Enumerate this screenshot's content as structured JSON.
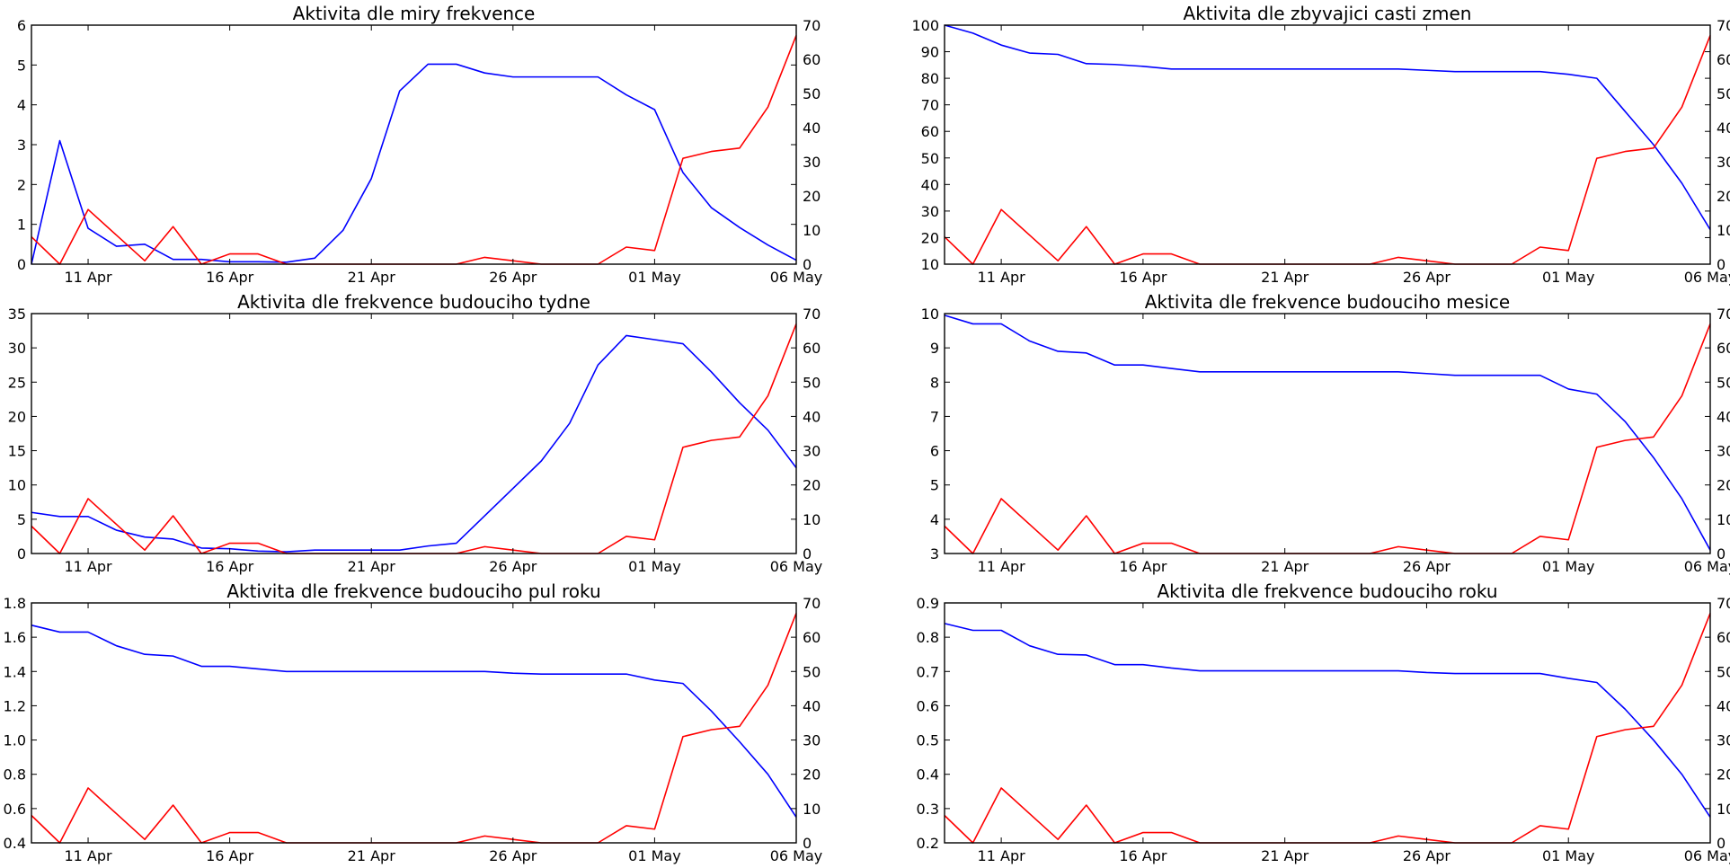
{
  "chart_data": [
    {
      "type": "line",
      "title": "Aktivita dle miry frekvence",
      "x": [
        "2020-04-09",
        "2020-04-10",
        "2020-04-11",
        "2020-04-12",
        "2020-04-13",
        "2020-04-14",
        "2020-04-15",
        "2020-04-16",
        "2020-04-17",
        "2020-04-18",
        "2020-04-19",
        "2020-04-20",
        "2020-04-21",
        "2020-04-22",
        "2020-04-23",
        "2020-04-24",
        "2020-04-25",
        "2020-04-26",
        "2020-04-27",
        "2020-04-28",
        "2020-04-29",
        "2020-04-30",
        "2020-05-01",
        "2020-05-02",
        "2020-05-03",
        "2020-05-04",
        "2020-05-05",
        "2020-05-06"
      ],
      "xticks": [
        "11 Apr",
        "16 Apr",
        "21 Apr",
        "26 Apr",
        "01 May",
        "06 May"
      ],
      "ylim_left": [
        0,
        6
      ],
      "yticks_left": [
        "0",
        "1",
        "2",
        "3",
        "4",
        "5",
        "6"
      ],
      "ylim_right": [
        0,
        70
      ],
      "yticks_right": [
        "0",
        "10",
        "20",
        "30",
        "40",
        "50",
        "60",
        "70"
      ],
      "series": [
        {
          "axis": "left",
          "color": "#0000ff",
          "values": [
            0.0,
            3.1,
            0.9,
            0.45,
            0.5,
            0.12,
            0.12,
            0.06,
            0.06,
            0.05,
            0.15,
            0.85,
            2.15,
            4.35,
            5.02,
            5.02,
            4.8,
            4.7,
            4.7,
            4.7,
            4.7,
            4.25,
            3.88,
            2.3,
            1.42,
            0.92,
            0.48,
            0.1
          ]
        },
        {
          "axis": "right",
          "color": "#ff0000",
          "values": [
            8.0,
            0.0,
            16.0,
            8.5,
            1.0,
            11.0,
            0.0,
            3.0,
            3.0,
            0.0,
            0.0,
            0.0,
            0.0,
            0.0,
            0.0,
            0.0,
            2.0,
            1.0,
            0.0,
            0.0,
            0.0,
            5.0,
            4.0,
            31.0,
            33.0,
            34.0,
            46.0,
            67.0
          ]
        }
      ]
    },
    {
      "type": "line",
      "title": "Aktivita dle zbyvajici casti zmen",
      "x": [
        "2020-04-09",
        "2020-04-10",
        "2020-04-11",
        "2020-04-12",
        "2020-04-13",
        "2020-04-14",
        "2020-04-15",
        "2020-04-16",
        "2020-04-17",
        "2020-04-18",
        "2020-04-19",
        "2020-04-20",
        "2020-04-21",
        "2020-04-22",
        "2020-04-23",
        "2020-04-24",
        "2020-04-25",
        "2020-04-26",
        "2020-04-27",
        "2020-04-28",
        "2020-04-29",
        "2020-04-30",
        "2020-05-01",
        "2020-05-02",
        "2020-05-03",
        "2020-05-04",
        "2020-05-05",
        "2020-05-06"
      ],
      "xticks": [
        "11 Apr",
        "16 Apr",
        "21 Apr",
        "26 Apr",
        "01 May",
        "06 May"
      ],
      "ylim_left": [
        10,
        100
      ],
      "yticks_left": [
        "10",
        "20",
        "30",
        "40",
        "50",
        "60",
        "70",
        "80",
        "90",
        "100"
      ],
      "ylim_right": [
        0,
        70
      ],
      "yticks_right": [
        "0",
        "10",
        "20",
        "30",
        "40",
        "50",
        "60",
        "70"
      ],
      "series": [
        {
          "axis": "left",
          "color": "#0000ff",
          "values": [
            100.0,
            97.0,
            92.5,
            89.5,
            89.0,
            85.5,
            85.2,
            84.5,
            83.5,
            83.5,
            83.5,
            83.5,
            83.5,
            83.5,
            83.5,
            83.5,
            83.5,
            83.0,
            82.5,
            82.5,
            82.5,
            82.5,
            81.5,
            80.0,
            67.5,
            55.0,
            40.5,
            23.0
          ]
        },
        {
          "axis": "right",
          "color": "#ff0000",
          "values": [
            8.0,
            0.0,
            16.0,
            8.5,
            1.0,
            11.0,
            0.0,
            3.0,
            3.0,
            0.0,
            0.0,
            0.0,
            0.0,
            0.0,
            0.0,
            0.0,
            2.0,
            1.0,
            0.0,
            0.0,
            0.0,
            5.0,
            4.0,
            31.0,
            33.0,
            34.0,
            46.0,
            67.0
          ]
        }
      ]
    },
    {
      "type": "line",
      "title": "Aktivita dle frekvence budouciho tydne",
      "x": [
        "2020-04-09",
        "2020-04-10",
        "2020-04-11",
        "2020-04-12",
        "2020-04-13",
        "2020-04-14",
        "2020-04-15",
        "2020-04-16",
        "2020-04-17",
        "2020-04-18",
        "2020-04-19",
        "2020-04-20",
        "2020-04-21",
        "2020-04-22",
        "2020-04-23",
        "2020-04-24",
        "2020-04-25",
        "2020-04-26",
        "2020-04-27",
        "2020-04-28",
        "2020-04-29",
        "2020-04-30",
        "2020-05-01",
        "2020-05-02",
        "2020-05-03",
        "2020-05-04",
        "2020-05-05",
        "2020-05-06"
      ],
      "xticks": [
        "11 Apr",
        "16 Apr",
        "21 Apr",
        "26 Apr",
        "01 May",
        "06 May"
      ],
      "ylim_left": [
        0,
        35
      ],
      "yticks_left": [
        "0",
        "5",
        "10",
        "15",
        "20",
        "25",
        "30",
        "35"
      ],
      "ylim_right": [
        0,
        70
      ],
      "yticks_right": [
        "0",
        "10",
        "20",
        "30",
        "40",
        "50",
        "60",
        "70"
      ],
      "series": [
        {
          "axis": "left",
          "color": "#0000ff",
          "values": [
            6.0,
            5.4,
            5.4,
            3.4,
            2.4,
            2.1,
            0.8,
            0.7,
            0.35,
            0.25,
            0.5,
            0.5,
            0.5,
            0.5,
            1.1,
            1.5,
            5.5,
            9.5,
            13.5,
            19.0,
            27.5,
            31.8,
            31.2,
            30.6,
            26.5,
            22.0,
            18.0,
            12.5
          ]
        },
        {
          "axis": "right",
          "color": "#ff0000",
          "values": [
            8.0,
            0.0,
            16.0,
            8.5,
            1.0,
            11.0,
            0.0,
            3.0,
            3.0,
            0.0,
            0.0,
            0.0,
            0.0,
            0.0,
            0.0,
            0.0,
            2.0,
            1.0,
            0.0,
            0.0,
            0.0,
            5.0,
            4.0,
            31.0,
            33.0,
            34.0,
            46.0,
            67.0
          ]
        }
      ]
    },
    {
      "type": "line",
      "title": "Aktivita dle frekvence budouciho mesice",
      "x": [
        "2020-04-09",
        "2020-04-10",
        "2020-04-11",
        "2020-04-12",
        "2020-04-13",
        "2020-04-14",
        "2020-04-15",
        "2020-04-16",
        "2020-04-17",
        "2020-04-18",
        "2020-04-19",
        "2020-04-20",
        "2020-04-21",
        "2020-04-22",
        "2020-04-23",
        "2020-04-24",
        "2020-04-25",
        "2020-04-26",
        "2020-04-27",
        "2020-04-28",
        "2020-04-29",
        "2020-04-30",
        "2020-05-01",
        "2020-05-02",
        "2020-05-03",
        "2020-05-04",
        "2020-05-05",
        "2020-05-06"
      ],
      "xticks": [
        "11 Apr",
        "16 Apr",
        "21 Apr",
        "26 Apr",
        "01 May",
        "06 May"
      ],
      "ylim_left": [
        3,
        10
      ],
      "yticks_left": [
        "3",
        "4",
        "5",
        "6",
        "7",
        "8",
        "9",
        "10"
      ],
      "ylim_right": [
        0,
        70
      ],
      "yticks_right": [
        "0",
        "10",
        "20",
        "30",
        "40",
        "50",
        "60",
        "70"
      ],
      "series": [
        {
          "axis": "left",
          "color": "#0000ff",
          "values": [
            9.95,
            9.7,
            9.7,
            9.2,
            8.9,
            8.85,
            8.5,
            8.5,
            8.4,
            8.3,
            8.3,
            8.3,
            8.3,
            8.3,
            8.3,
            8.3,
            8.3,
            8.25,
            8.2,
            8.2,
            8.2,
            8.2,
            7.8,
            7.65,
            6.85,
            5.8,
            4.6,
            3.1
          ]
        },
        {
          "axis": "right",
          "color": "#ff0000",
          "values": [
            8.0,
            0.0,
            16.0,
            8.5,
            1.0,
            11.0,
            0.0,
            3.0,
            3.0,
            0.0,
            0.0,
            0.0,
            0.0,
            0.0,
            0.0,
            0.0,
            2.0,
            1.0,
            0.0,
            0.0,
            0.0,
            5.0,
            4.0,
            31.0,
            33.0,
            34.0,
            46.0,
            67.0
          ]
        }
      ]
    },
    {
      "type": "line",
      "title": "Aktivita dle frekvence budouciho pul roku",
      "x": [
        "2020-04-09",
        "2020-04-10",
        "2020-04-11",
        "2020-04-12",
        "2020-04-13",
        "2020-04-14",
        "2020-04-15",
        "2020-04-16",
        "2020-04-17",
        "2020-04-18",
        "2020-04-19",
        "2020-04-20",
        "2020-04-21",
        "2020-04-22",
        "2020-04-23",
        "2020-04-24",
        "2020-04-25",
        "2020-04-26",
        "2020-04-27",
        "2020-04-28",
        "2020-04-29",
        "2020-04-30",
        "2020-05-01",
        "2020-05-02",
        "2020-05-03",
        "2020-05-04",
        "2020-05-05",
        "2020-05-06"
      ],
      "xticks": [
        "11 Apr",
        "16 Apr",
        "21 Apr",
        "26 Apr",
        "01 May",
        "06 May"
      ],
      "ylim_left": [
        0.4,
        1.8
      ],
      "yticks_left": [
        "0.4",
        "0.6",
        "0.8",
        "1.0",
        "1.2",
        "1.4",
        "1.6",
        "1.8"
      ],
      "ylim_right": [
        0,
        70
      ],
      "yticks_right": [
        "0",
        "10",
        "20",
        "30",
        "40",
        "50",
        "60",
        "70"
      ],
      "series": [
        {
          "axis": "left",
          "color": "#0000ff",
          "values": [
            1.67,
            1.63,
            1.63,
            1.55,
            1.5,
            1.49,
            1.43,
            1.43,
            1.415,
            1.4,
            1.4,
            1.4,
            1.4,
            1.4,
            1.4,
            1.4,
            1.4,
            1.39,
            1.385,
            1.385,
            1.385,
            1.385,
            1.35,
            1.33,
            1.17,
            0.99,
            0.8,
            0.55
          ]
        },
        {
          "axis": "right",
          "color": "#ff0000",
          "values": [
            8.0,
            0.0,
            16.0,
            8.5,
            1.0,
            11.0,
            0.0,
            3.0,
            3.0,
            0.0,
            0.0,
            0.0,
            0.0,
            0.0,
            0.0,
            0.0,
            2.0,
            1.0,
            0.0,
            0.0,
            0.0,
            5.0,
            4.0,
            31.0,
            33.0,
            34.0,
            46.0,
            67.0
          ]
        }
      ]
    },
    {
      "type": "line",
      "title": "Aktivita dle frekvence budouciho roku",
      "x": [
        "2020-04-09",
        "2020-04-10",
        "2020-04-11",
        "2020-04-12",
        "2020-04-13",
        "2020-04-14",
        "2020-04-15",
        "2020-04-16",
        "2020-04-17",
        "2020-04-18",
        "2020-04-19",
        "2020-04-20",
        "2020-04-21",
        "2020-04-22",
        "2020-04-23",
        "2020-04-24",
        "2020-04-25",
        "2020-04-26",
        "2020-04-27",
        "2020-04-28",
        "2020-04-29",
        "2020-04-30",
        "2020-05-01",
        "2020-05-02",
        "2020-05-03",
        "2020-05-04",
        "2020-05-05",
        "2020-05-06"
      ],
      "xticks": [
        "11 Apr",
        "16 Apr",
        "21 Apr",
        "26 Apr",
        "01 May",
        "06 May"
      ],
      "ylim_left": [
        0.2,
        0.9
      ],
      "yticks_left": [
        "0.2",
        "0.3",
        "0.4",
        "0.5",
        "0.6",
        "0.7",
        "0.8",
        "0.9"
      ],
      "ylim_right": [
        0,
        70
      ],
      "yticks_right": [
        "0",
        "10",
        "20",
        "30",
        "40",
        "50",
        "60",
        "70"
      ],
      "series": [
        {
          "axis": "left",
          "color": "#0000ff",
          "values": [
            0.84,
            0.82,
            0.82,
            0.775,
            0.75,
            0.748,
            0.72,
            0.72,
            0.71,
            0.702,
            0.702,
            0.702,
            0.702,
            0.702,
            0.702,
            0.702,
            0.702,
            0.697,
            0.694,
            0.694,
            0.694,
            0.694,
            0.68,
            0.668,
            0.59,
            0.5,
            0.4,
            0.275
          ]
        },
        {
          "axis": "right",
          "color": "#ff0000",
          "values": [
            8.0,
            0.0,
            16.0,
            8.5,
            1.0,
            11.0,
            0.0,
            3.0,
            3.0,
            0.0,
            0.0,
            0.0,
            0.0,
            0.0,
            0.0,
            0.0,
            2.0,
            1.0,
            0.0,
            0.0,
            0.0,
            5.0,
            4.0,
            31.0,
            33.0,
            34.0,
            46.0,
            67.0
          ]
        }
      ]
    }
  ]
}
